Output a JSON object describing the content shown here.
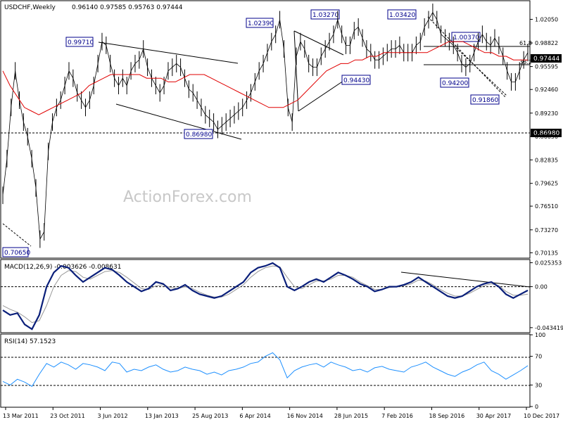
{
  "chart_data": {
    "type": "candlestick",
    "main": {
      "symbol_label": "USDCHF,Weekly",
      "ohlc_label": "0.96140 0.97585 0.95763 0.97444",
      "y_ticks": [
        "1.02050",
        "0.98822",
        "0.95595",
        "0.92460",
        "0.89230",
        "0.86050",
        "0.82835",
        "0.79625",
        "0.76510",
        "0.73270",
        "0.70135"
      ],
      "y_range": [
        0.695,
        1.045
      ],
      "current_price": "0.97444",
      "support_label": "0.86980",
      "watermark": "ActionForex.com",
      "annotations": [
        "0.70650",
        "0.99710",
        "1.02390",
        "1.03270",
        "1.03420",
        "1.00370",
        "0.94430",
        "0.94200",
        "0.91860",
        "0.86980"
      ],
      "fib_labels": [
        "61.8",
        "38.2"
      ],
      "series": [
        {
          "name": "price",
          "values": [
            0.78,
            0.83,
            0.9,
            0.95,
            0.91,
            0.88,
            0.86,
            0.83,
            0.79,
            0.72,
            0.73,
            0.84,
            0.88,
            0.9,
            0.91,
            0.93,
            0.95,
            0.94,
            0.92,
            0.91,
            0.9,
            0.91,
            0.93,
            0.96,
            0.99,
            0.985,
            0.96,
            0.94,
            0.93,
            0.94,
            0.93,
            0.95,
            0.96,
            0.965,
            0.98,
            0.955,
            0.94,
            0.93,
            0.92,
            0.93,
            0.95,
            0.955,
            0.96,
            0.955,
            0.94,
            0.925,
            0.92,
            0.91,
            0.9,
            0.89,
            0.885,
            0.88,
            0.87,
            0.875,
            0.88,
            0.885,
            0.89,
            0.895,
            0.9,
            0.91,
            0.92,
            0.935,
            0.95,
            0.96,
            0.975,
            0.99,
            1.0,
            1.02,
            0.98,
            0.9,
            0.88,
            0.97,
            0.99,
            0.98,
            0.96,
            0.955,
            0.955,
            0.97,
            0.98,
            0.99,
            1.0,
            1.02,
            1.0,
            0.985,
            0.985,
            1.005,
            1.01,
            0.995,
            0.98,
            0.975,
            0.965,
            0.965,
            0.97,
            0.975,
            0.98,
            0.98,
            0.985,
            0.975,
            0.975,
            0.975,
            0.985,
            0.99,
            1.01,
            1.02,
            1.03,
            1.02,
            1.0,
            0.995,
            0.99,
            0.985,
            0.975,
            0.96,
            0.955,
            0.96,
            0.975,
            0.99,
            1.0,
            0.99,
            0.985,
            0.995,
            0.985,
            0.97,
            0.95,
            0.935,
            0.935,
            0.95,
            0.965,
            0.975
          ]
        },
        {
          "name": "sma",
          "values": [
            0.95,
            0.93,
            0.915,
            0.9,
            0.895,
            0.89,
            0.895,
            0.9,
            0.905,
            0.91,
            0.915,
            0.92,
            0.93,
            0.935,
            0.94,
            0.945,
            0.945,
            0.945,
            0.945,
            0.945,
            0.94,
            0.94,
            0.94,
            0.935,
            0.935,
            0.94,
            0.945,
            0.945,
            0.945,
            0.94,
            0.935,
            0.93,
            0.925,
            0.92,
            0.915,
            0.91,
            0.905,
            0.9,
            0.9,
            0.9,
            0.905,
            0.91,
            0.92,
            0.93,
            0.94,
            0.95,
            0.955,
            0.96,
            0.96,
            0.965,
            0.965,
            0.97,
            0.97,
            0.975,
            0.975,
            0.975,
            0.975,
            0.975,
            0.975,
            0.975,
            0.98,
            0.985,
            0.99,
            0.99,
            0.99,
            0.985,
            0.98,
            0.975,
            0.975,
            0.97,
            0.97,
            0.965,
            0.965,
            0.965
          ]
        }
      ]
    },
    "macd": {
      "label": "MACD(12,26,9) -0.003626 -0.008631",
      "y_ticks": [
        "0.025353",
        "0.00",
        "-0.043419"
      ],
      "y_range": [
        -0.048,
        0.028
      ],
      "series": [
        {
          "name": "macd",
          "values": [
            -0.025,
            -0.03,
            -0.028,
            -0.04,
            -0.045,
            -0.03,
            0.0,
            0.015,
            0.022,
            0.02,
            0.012,
            0.005,
            0.01,
            0.015,
            0.02,
            0.018,
            0.012,
            0.005,
            0.0,
            -0.005,
            -0.002,
            0.005,
            0.003,
            -0.004,
            -0.002,
            0.002,
            -0.004,
            -0.008,
            -0.01,
            -0.012,
            -0.01,
            -0.005,
            0.0,
            0.005,
            0.015,
            0.02,
            0.022,
            0.025,
            0.02,
            0.0,
            -0.004,
            0.0,
            0.005,
            0.008,
            0.005,
            0.01,
            0.015,
            0.012,
            0.008,
            0.003,
            0.0,
            -0.005,
            -0.003,
            0.0,
            0.0,
            0.002,
            0.005,
            0.01,
            0.005,
            0.0,
            -0.005,
            -0.01,
            -0.012,
            -0.01,
            -0.005,
            0.0,
            0.003,
            0.005,
            0.0,
            -0.008,
            -0.012,
            -0.008,
            -0.004
          ]
        },
        {
          "name": "signal",
          "values": [
            -0.02,
            -0.024,
            -0.027,
            -0.032,
            -0.038,
            -0.036,
            -0.02,
            0.0,
            0.012,
            0.017,
            0.016,
            0.01,
            0.008,
            0.012,
            0.016,
            0.017,
            0.015,
            0.01,
            0.004,
            -0.002,
            -0.003,
            0.001,
            0.002,
            -0.001,
            -0.002,
            0.0,
            -0.002,
            -0.006,
            -0.009,
            -0.011,
            -0.011,
            -0.008,
            -0.003,
            0.002,
            0.01,
            0.016,
            0.02,
            0.022,
            0.021,
            0.01,
            0.0,
            -0.002,
            0.002,
            0.006,
            0.006,
            0.008,
            0.012,
            0.012,
            0.01,
            0.005,
            0.001,
            -0.003,
            -0.003,
            -0.001,
            0.0,
            0.001,
            0.003,
            0.007,
            0.006,
            0.002,
            -0.003,
            -0.007,
            -0.01,
            -0.01,
            -0.007,
            -0.003,
            0.001,
            0.003,
            0.001,
            -0.005,
            -0.009,
            -0.009,
            -0.008
          ]
        }
      ]
    },
    "rsi": {
      "label": "RSI(14) 57.1523",
      "y_ticks": [
        "100",
        "70",
        "30",
        "0"
      ],
      "y_range": [
        0,
        100
      ],
      "series": [
        {
          "name": "rsi",
          "values": [
            35,
            30,
            38,
            34,
            28,
            45,
            60,
            55,
            62,
            58,
            52,
            60,
            58,
            55,
            50,
            62,
            60,
            48,
            52,
            50,
            55,
            58,
            52,
            48,
            50,
            55,
            52,
            50,
            45,
            48,
            44,
            50,
            52,
            55,
            60,
            62,
            70,
            75,
            65,
            40,
            50,
            55,
            58,
            60,
            55,
            62,
            58,
            55,
            50,
            52,
            48,
            54,
            56,
            52,
            50,
            48,
            55,
            58,
            62,
            55,
            50,
            45,
            42,
            48,
            52,
            58,
            62,
            50,
            45,
            38,
            44,
            50,
            57
          ]
        }
      ]
    },
    "x_labels": [
      "13 Mar 2011",
      "23 Oct 2011",
      "3 Jun 2012",
      "13 Jan 2013",
      "25 Aug 2013",
      "6 Apr 2014",
      "16 Nov 2014",
      "28 Jun 2015",
      "7 Feb 2016",
      "18 Sep 2016",
      "30 Apr 2017",
      "10 Dec 2017"
    ]
  }
}
